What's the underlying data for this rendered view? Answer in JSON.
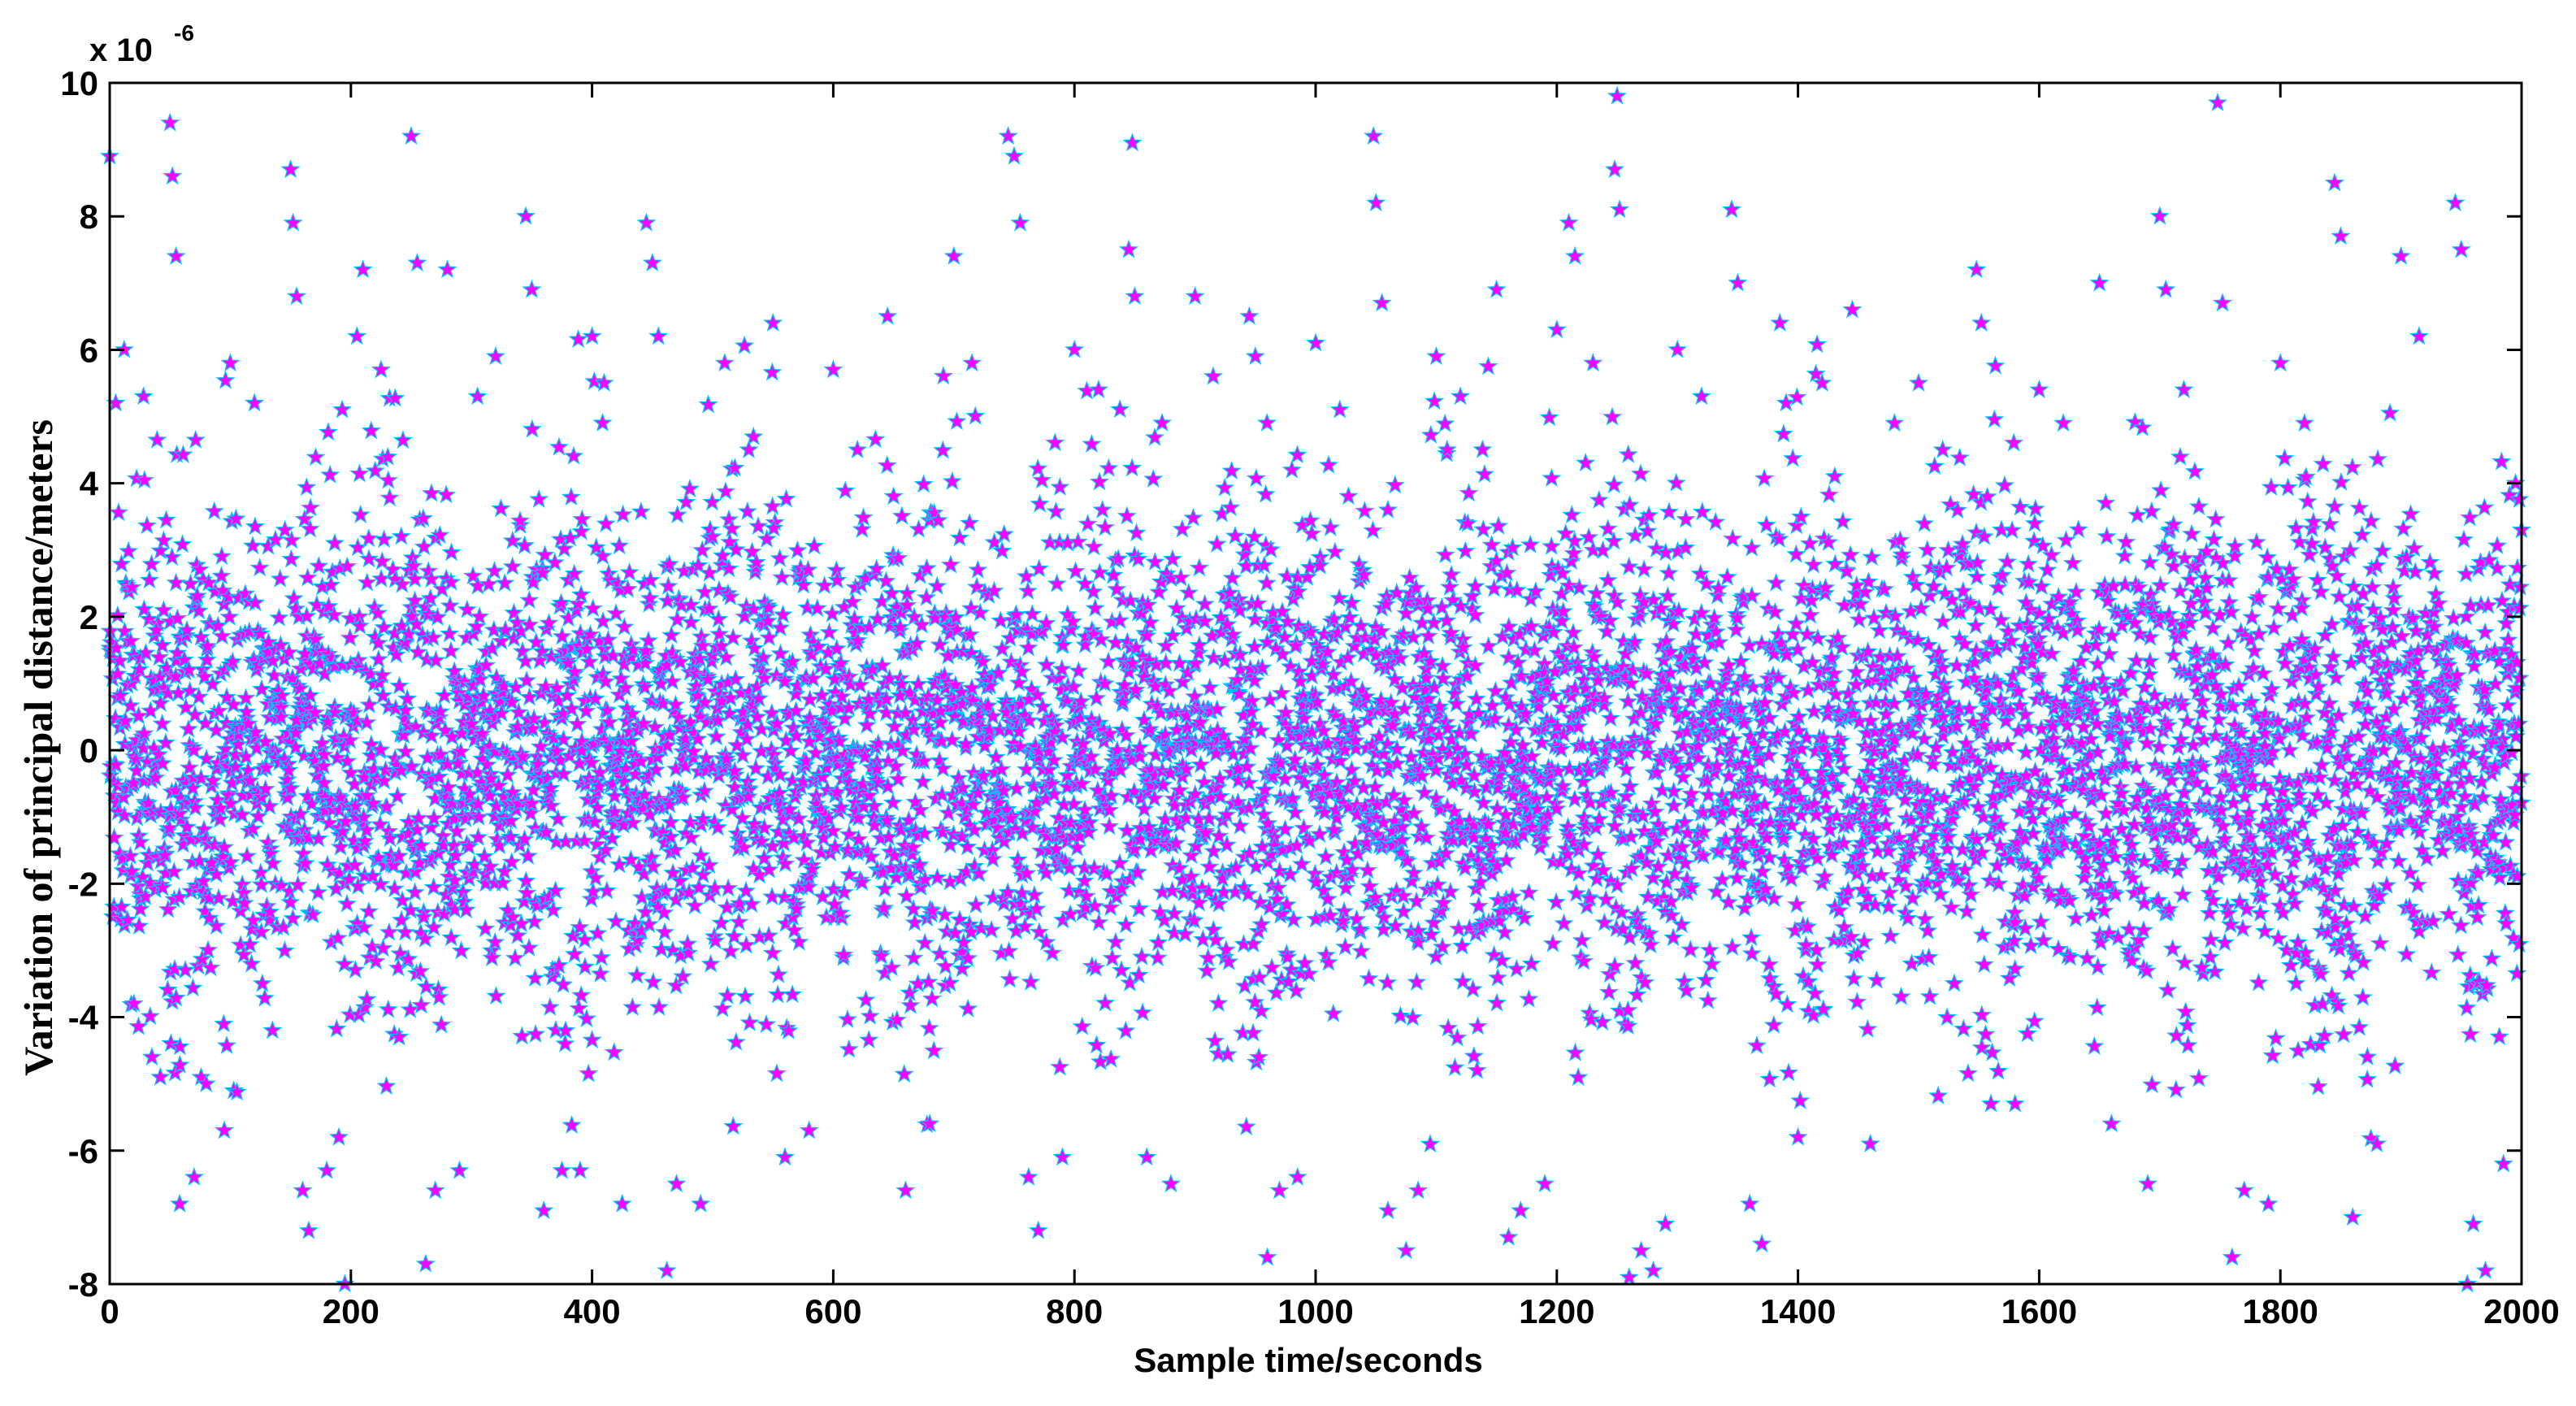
{
  "chart_data": {
    "type": "scatter",
    "xlabel": "Sample time/seconds",
    "ylabel": "Variation of principal distance/meters",
    "y_multiplier_prefix": "x 10",
    "y_multiplier_exponent": "-6",
    "xlim": [
      0,
      2000
    ],
    "ylim": [
      -8,
      10
    ],
    "x_ticks": [
      0,
      200,
      400,
      600,
      800,
      1000,
      1200,
      1400,
      1600,
      1800,
      2000
    ],
    "y_ticks": [
      -8,
      -6,
      -4,
      -2,
      0,
      2,
      4,
      6,
      8,
      10
    ],
    "grid": false,
    "legend": "none",
    "series": [
      {
        "marker": "star",
        "color": "#ff00ff",
        "edge_color": "#00c8ff",
        "points": [
          [
            0,
            8.9
          ],
          [
            5,
            5.2
          ],
          [
            12,
            6.0
          ],
          [
            20,
            -3.8
          ],
          [
            28,
            5.3
          ],
          [
            35,
            -4.6
          ],
          [
            42,
            -4.9
          ],
          [
            50,
            9.4
          ],
          [
            52,
            8.6
          ],
          [
            55,
            7.4
          ],
          [
            58,
            -6.8
          ],
          [
            70,
            -6.4
          ],
          [
            80,
            -5.0
          ],
          [
            95,
            -5.7
          ],
          [
            100,
            5.8
          ],
          [
            120,
            5.2
          ],
          [
            135,
            -4.2
          ],
          [
            150,
            8.7
          ],
          [
            152,
            7.9
          ],
          [
            155,
            6.8
          ],
          [
            160,
            -6.6
          ],
          [
            165,
            -7.2
          ],
          [
            180,
            -6.3
          ],
          [
            190,
            -5.8
          ],
          [
            195,
            -8.0
          ],
          [
            205,
            6.2
          ],
          [
            210,
            7.2
          ],
          [
            225,
            5.7
          ],
          [
            240,
            -4.3
          ],
          [
            250,
            9.2
          ],
          [
            255,
            7.3
          ],
          [
            262,
            -7.7
          ],
          [
            270,
            -6.6
          ],
          [
            280,
            7.2
          ],
          [
            290,
            -6.3
          ],
          [
            305,
            5.3
          ],
          [
            320,
            5.9
          ],
          [
            345,
            8.0
          ],
          [
            350,
            6.9
          ],
          [
            360,
            -6.9
          ],
          [
            375,
            -6.3
          ],
          [
            390,
            -6.3
          ],
          [
            400,
            6.2
          ],
          [
            410,
            5.5
          ],
          [
            425,
            -6.8
          ],
          [
            445,
            7.9
          ],
          [
            450,
            7.3
          ],
          [
            455,
            6.2
          ],
          [
            462,
            -7.8
          ],
          [
            470,
            -6.5
          ],
          [
            490,
            -6.8
          ],
          [
            510,
            5.8
          ],
          [
            530,
            4.5
          ],
          [
            550,
            6.4
          ],
          [
            560,
            -6.1
          ],
          [
            580,
            -5.7
          ],
          [
            600,
            5.7
          ],
          [
            620,
            4.5
          ],
          [
            645,
            6.5
          ],
          [
            660,
            -6.6
          ],
          [
            680,
            -5.6
          ],
          [
            700,
            7.4
          ],
          [
            715,
            5.8
          ],
          [
            745,
            9.2
          ],
          [
            750,
            8.9
          ],
          [
            755,
            7.9
          ],
          [
            762,
            -6.4
          ],
          [
            770,
            -7.2
          ],
          [
            790,
            -6.1
          ],
          [
            800,
            6.0
          ],
          [
            820,
            5.4
          ],
          [
            845,
            7.5
          ],
          [
            848,
            9.1
          ],
          [
            850,
            6.8
          ],
          [
            860,
            -6.1
          ],
          [
            880,
            -6.5
          ],
          [
            900,
            6.8
          ],
          [
            915,
            5.6
          ],
          [
            945,
            6.5
          ],
          [
            950,
            5.9
          ],
          [
            960,
            -7.6
          ],
          [
            970,
            -6.6
          ],
          [
            985,
            -6.4
          ],
          [
            1000,
            6.1
          ],
          [
            1020,
            5.1
          ],
          [
            1048,
            9.2
          ],
          [
            1050,
            8.2
          ],
          [
            1055,
            6.7
          ],
          [
            1060,
            -6.9
          ],
          [
            1075,
            -7.5
          ],
          [
            1085,
            -6.6
          ],
          [
            1100,
            5.9
          ],
          [
            1120,
            5.3
          ],
          [
            1150,
            6.9
          ],
          [
            1160,
            -7.3
          ],
          [
            1170,
            -6.9
          ],
          [
            1190,
            -6.5
          ],
          [
            1200,
            6.3
          ],
          [
            1210,
            7.9
          ],
          [
            1215,
            7.4
          ],
          [
            1230,
            5.8
          ],
          [
            1250,
            9.8
          ],
          [
            1248,
            8.7
          ],
          [
            1252,
            8.1
          ],
          [
            1260,
            -7.9
          ],
          [
            1270,
            -7.5
          ],
          [
            1280,
            -7.8
          ],
          [
            1290,
            -7.1
          ],
          [
            1300,
            6.0
          ],
          [
            1320,
            5.3
          ],
          [
            1345,
            8.1
          ],
          [
            1350,
            7.0
          ],
          [
            1360,
            -6.8
          ],
          [
            1370,
            -7.4
          ],
          [
            1385,
            6.4
          ],
          [
            1400,
            -5.8
          ],
          [
            1420,
            5.5
          ],
          [
            1445,
            6.6
          ],
          [
            1460,
            -5.9
          ],
          [
            1480,
            4.9
          ],
          [
            1500,
            5.5
          ],
          [
            1520,
            4.5
          ],
          [
            1548,
            7.2
          ],
          [
            1552,
            6.4
          ],
          [
            1560,
            -5.3
          ],
          [
            1580,
            -5.3
          ],
          [
            1600,
            5.4
          ],
          [
            1620,
            4.9
          ],
          [
            1650,
            7.0
          ],
          [
            1660,
            -5.6
          ],
          [
            1690,
            -6.5
          ],
          [
            1700,
            8.0
          ],
          [
            1705,
            6.9
          ],
          [
            1720,
            5.4
          ],
          [
            1748,
            9.7
          ],
          [
            1752,
            6.7
          ],
          [
            1760,
            -7.6
          ],
          [
            1770,
            -6.6
          ],
          [
            1790,
            -6.8
          ],
          [
            1800,
            5.8
          ],
          [
            1820,
            4.9
          ],
          [
            1845,
            8.5
          ],
          [
            1850,
            7.7
          ],
          [
            1860,
            -7.0
          ],
          [
            1880,
            -5.9
          ],
          [
            1900,
            7.4
          ],
          [
            1915,
            6.2
          ],
          [
            1945,
            8.2
          ],
          [
            1950,
            7.5
          ],
          [
            1955,
            -8.0
          ],
          [
            1960,
            -7.1
          ],
          [
            1970,
            -7.8
          ],
          [
            1985,
            -6.2
          ],
          [
            1995,
            4.0
          ],
          [
            2000,
            3.3
          ]
        ],
        "generated_dense_body": {
          "count": 6000,
          "x_range": [
            0,
            2000
          ],
          "std_dev": 1.8,
          "mean": 0.0
        }
      }
    ]
  }
}
